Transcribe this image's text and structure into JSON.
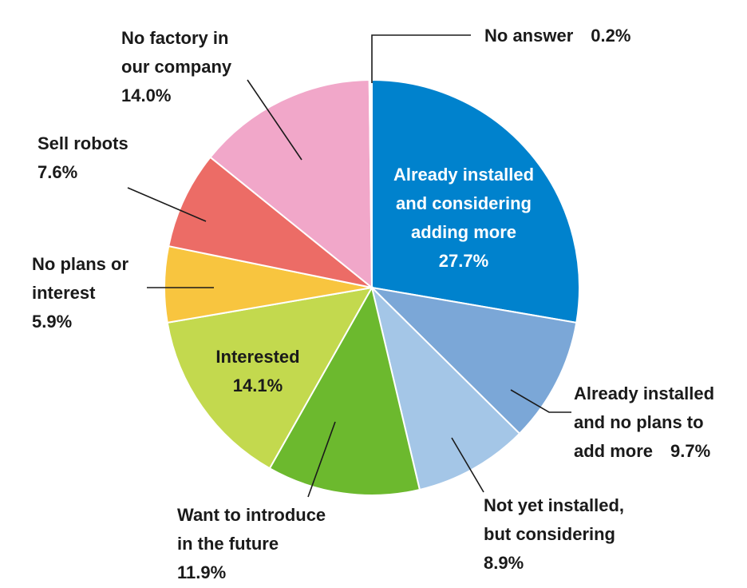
{
  "chart_data": {
    "type": "pie",
    "title": "",
    "start_angle_deg": 0,
    "direction": "clockwise",
    "slices": [
      {
        "label_lines": [
          "Already installed",
          "and considering",
          "adding more"
        ],
        "value_text": "27.7%",
        "value": 27.7,
        "color": "#0082cd",
        "label_color": "#ffffff"
      },
      {
        "label_lines": [
          "Already installed",
          "and no plans to",
          "add more"
        ],
        "value_text": "9.7%",
        "value": 9.7,
        "color": "#7ba7d7",
        "label_color": "#1a1a1a"
      },
      {
        "label_lines": [
          "Not yet installed,",
          "but considering"
        ],
        "value_text": "8.9%",
        "value": 8.9,
        "color": "#a4c6e7",
        "label_color": "#1a1a1a"
      },
      {
        "label_lines": [
          "Want to introduce",
          "in the future"
        ],
        "value_text": "11.9%",
        "value": 11.9,
        "color": "#6cb92e",
        "label_color": "#1a1a1a"
      },
      {
        "label_lines": [
          "Interested"
        ],
        "value_text": "14.1%",
        "value": 14.1,
        "color": "#c3d94e",
        "label_color": "#1a1a1a"
      },
      {
        "label_lines": [
          "No plans or",
          "interest"
        ],
        "value_text": "5.9%",
        "value": 5.9,
        "color": "#f8c53f",
        "label_color": "#1a1a1a"
      },
      {
        "label_lines": [
          "Sell robots"
        ],
        "value_text": "7.6%",
        "value": 7.6,
        "color": "#ec6c66",
        "label_color": "#1a1a1a"
      },
      {
        "label_lines": [
          "No factory in",
          "our company"
        ],
        "value_text": "14.0%",
        "value": 14.0,
        "color": "#f1a7c9",
        "label_color": "#1a1a1a"
      },
      {
        "label_lines": [
          "No answer"
        ],
        "value_text": "0.2%",
        "value": 0.2,
        "color": "#ffffff",
        "label_color": "#1a1a1a"
      }
    ]
  }
}
